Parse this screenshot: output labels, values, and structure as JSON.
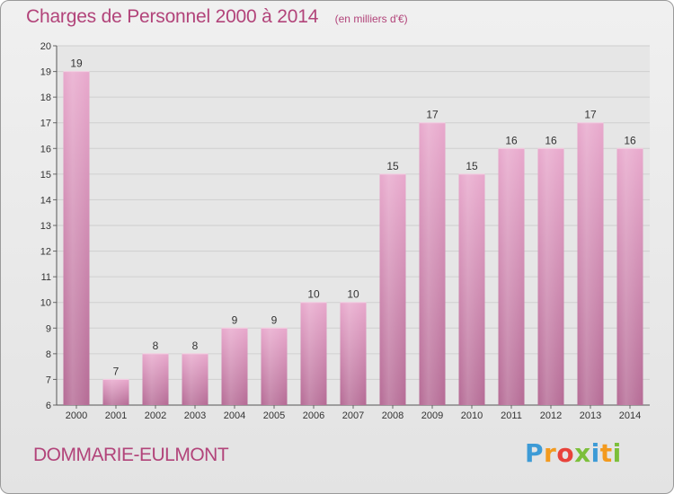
{
  "chart_data": {
    "type": "bar",
    "title": "Charges de Personnel 2000 à 2014",
    "subtitle": "(en milliers d'€)",
    "categories": [
      "2000",
      "2001",
      "2002",
      "2003",
      "2004",
      "2005",
      "2006",
      "2007",
      "2008",
      "2009",
      "2010",
      "2011",
      "2012",
      "2013",
      "2014"
    ],
    "values": [
      19,
      7,
      8,
      8,
      9,
      9,
      10,
      10,
      15,
      17,
      15,
      16,
      16,
      17,
      16
    ],
    "ylim": [
      6,
      20
    ],
    "yticks": [
      6,
      7,
      8,
      9,
      10,
      11,
      12,
      13,
      14,
      15,
      16,
      17,
      18,
      19,
      20
    ],
    "grid": true,
    "bar_color": "#d98ab3"
  },
  "footer": {
    "commune": "DOMMARIE-EULMONT",
    "brand": [
      "P",
      "r",
      "o",
      "x",
      "i",
      "t",
      "i"
    ]
  }
}
